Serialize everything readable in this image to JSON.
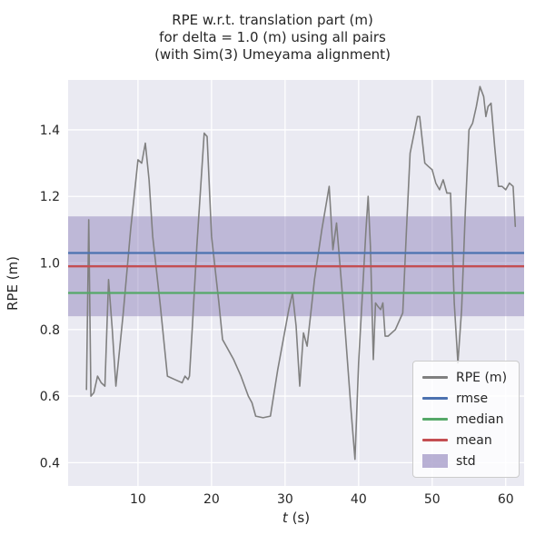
{
  "figure": {
    "title_lines": [
      "RPE w.r.t. translation part (m)",
      "for delta = 1.0 (m) using all pairs",
      "(with Sim(3) Umeyama alignment)"
    ],
    "xlabel_var": "t",
    "xlabel_rest": " (s)"
  },
  "chart_data": {
    "type": "line",
    "title": "RPE w.r.t. translation part (m)\nfor delta = 1.0 (m) using all pairs\n(with Sim(3) Umeyama alignment)",
    "xlabel": "t (s)",
    "ylabel": "RPE (m)",
    "xlim": [
      0.5,
      62.5
    ],
    "ylim": [
      0.33,
      1.55
    ],
    "xticks": [
      10,
      20,
      30,
      40,
      50,
      60
    ],
    "yticks": [
      0.4,
      0.6,
      0.8,
      1.0,
      1.2,
      1.4
    ],
    "grid": true,
    "plot_bg": "#eaeaf2",
    "grid_color": "#ffffff",
    "legend_position": "lower right",
    "series": [
      {
        "name": "RPE (m)",
        "type": "line",
        "color": "#808080",
        "x": [
          3.0,
          3.3,
          3.6,
          4.0,
          4.5,
          5.0,
          5.5,
          6.0,
          6.5,
          7.0,
          8.0,
          9.0,
          10.0,
          10.5,
          11.0,
          11.5,
          12.0,
          13.0,
          14.0,
          15.0,
          16.0,
          16.4,
          16.8,
          17.0,
          17.4,
          18.0,
          19.0,
          19.4,
          20.0,
          21.0,
          21.5,
          22.0,
          23.0,
          24.0,
          25.0,
          25.5,
          26.0,
          27.0,
          28.0,
          29.0,
          30.0,
          30.5,
          31.0,
          31.5,
          32.0,
          32.5,
          33.0,
          33.5,
          34.0,
          35.0,
          36.0,
          36.5,
          37.0,
          38.0,
          39.0,
          39.5,
          40.0,
          41.0,
          41.3,
          41.6,
          42.0,
          42.3,
          42.6,
          43.0,
          43.3,
          43.6,
          44.0,
          45.0,
          46.0,
          46.5,
          47.0,
          48.0,
          48.3,
          49.0,
          49.5,
          50.0,
          50.5,
          51.0,
          51.5,
          52.0,
          52.5,
          53.0,
          53.5,
          54.0,
          54.5,
          55.0,
          55.5,
          56.0,
          56.5,
          57.0,
          57.3,
          57.6,
          58.0,
          58.5,
          59.0,
          59.5,
          60.0,
          60.5,
          61.0,
          61.3
        ],
        "y": [
          0.62,
          1.13,
          0.6,
          0.61,
          0.66,
          0.64,
          0.63,
          0.95,
          0.8,
          0.63,
          0.85,
          1.1,
          1.31,
          1.3,
          1.36,
          1.25,
          1.08,
          0.88,
          0.66,
          0.65,
          0.64,
          0.66,
          0.65,
          0.66,
          0.81,
          1.05,
          1.39,
          1.38,
          1.08,
          0.88,
          0.77,
          0.75,
          0.71,
          0.66,
          0.6,
          0.58,
          0.54,
          0.535,
          0.54,
          0.68,
          0.8,
          0.86,
          0.91,
          0.81,
          0.63,
          0.79,
          0.75,
          0.85,
          0.95,
          1.1,
          1.23,
          1.04,
          1.12,
          0.85,
          0.55,
          0.41,
          0.7,
          1.1,
          1.2,
          1.05,
          0.71,
          0.88,
          0.87,
          0.86,
          0.88,
          0.78,
          0.78,
          0.8,
          0.85,
          1.1,
          1.33,
          1.44,
          1.44,
          1.3,
          1.29,
          1.28,
          1.24,
          1.22,
          1.25,
          1.21,
          1.21,
          0.88,
          0.7,
          0.86,
          1.15,
          1.4,
          1.42,
          1.47,
          1.53,
          1.5,
          1.44,
          1.47,
          1.48,
          1.35,
          1.23,
          1.23,
          1.22,
          1.24,
          1.23,
          1.11
        ]
      },
      {
        "name": "rmse",
        "type": "hline",
        "color": "#4c72b0",
        "value": 1.03
      },
      {
        "name": "median",
        "type": "hline",
        "color": "#55a868",
        "value": 0.91
      },
      {
        "name": "mean",
        "type": "hline",
        "color": "#c44e52",
        "value": 0.99
      },
      {
        "name": "std",
        "type": "band",
        "color": "#8172b2",
        "alpha": 0.42,
        "range": [
          0.84,
          1.14
        ]
      }
    ]
  },
  "legend": {
    "items": [
      {
        "label": "RPE (m)",
        "swatch": "line",
        "color": "#808080"
      },
      {
        "label": "rmse",
        "swatch": "line",
        "color": "#4c72b0"
      },
      {
        "label": "median",
        "swatch": "line",
        "color": "#55a868"
      },
      {
        "label": "mean",
        "swatch": "line",
        "color": "#c44e52"
      },
      {
        "label": "std",
        "swatch": "patch",
        "color": "rgba(129,114,178,0.55)"
      }
    ]
  }
}
